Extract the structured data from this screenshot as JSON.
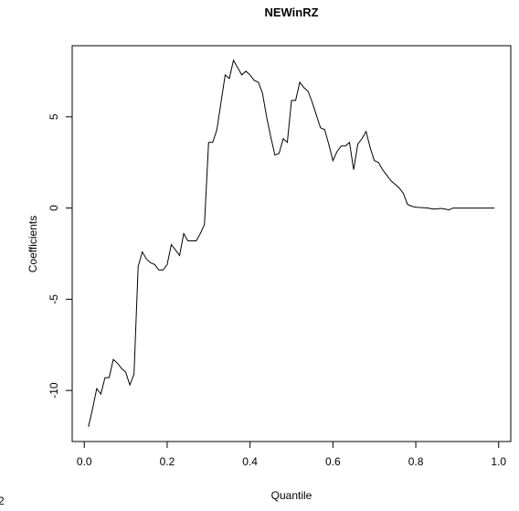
{
  "chart_data": {
    "type": "line",
    "title": "NEWinRZ",
    "x_label": "Quantile",
    "y_label": "Coefficients",
    "x": [
      0.01,
      0.02,
      0.03,
      0.04,
      0.05,
      0.06,
      0.07,
      0.08,
      0.09,
      0.1,
      0.11,
      0.12,
      0.13,
      0.14,
      0.15,
      0.16,
      0.17,
      0.18,
      0.19,
      0.2,
      0.21,
      0.22,
      0.23,
      0.24,
      0.25,
      0.26,
      0.27,
      0.28,
      0.29,
      0.3,
      0.31,
      0.32,
      0.33,
      0.34,
      0.35,
      0.36,
      0.37,
      0.38,
      0.39,
      0.4,
      0.41,
      0.42,
      0.43,
      0.44,
      0.45,
      0.46,
      0.47,
      0.48,
      0.49,
      0.5,
      0.51,
      0.52,
      0.53,
      0.54,
      0.55,
      0.56,
      0.57,
      0.58,
      0.59,
      0.6,
      0.61,
      0.62,
      0.63,
      0.64,
      0.65,
      0.66,
      0.67,
      0.68,
      0.69,
      0.7,
      0.71,
      0.72,
      0.73,
      0.74,
      0.75,
      0.76,
      0.77,
      0.78,
      0.79,
      0.8,
      0.81,
      0.82,
      0.83,
      0.84,
      0.85,
      0.86,
      0.87,
      0.88,
      0.89,
      0.9,
      0.91,
      0.92,
      0.93,
      0.94,
      0.95,
      0.96,
      0.97,
      0.98,
      0.99
    ],
    "values": [
      -12.0,
      -11.0,
      -9.9,
      -10.2,
      -9.3,
      -9.3,
      -8.3,
      -8.5,
      -8.8,
      -9.0,
      -9.7,
      -9.1,
      -3.2,
      -2.4,
      -2.8,
      -3.0,
      -3.1,
      -3.4,
      -3.4,
      -3.1,
      -2.0,
      -2.3,
      -2.6,
      -1.4,
      -1.8,
      -1.8,
      -1.8,
      -1.4,
      -0.9,
      3.6,
      3.6,
      4.3,
      5.8,
      7.3,
      7.1,
      8.1,
      7.7,
      7.3,
      7.5,
      7.3,
      7.0,
      6.9,
      6.3,
      5.0,
      3.9,
      2.9,
      3.0,
      3.8,
      3.6,
      5.9,
      5.9,
      6.9,
      6.6,
      6.4,
      5.8,
      5.1,
      4.4,
      4.3,
      3.5,
      2.6,
      3.1,
      3.4,
      3.4,
      3.6,
      2.1,
      3.5,
      3.8,
      4.2,
      3.3,
      2.6,
      2.5,
      2.1,
      1.8,
      1.5,
      1.3,
      1.1,
      0.8,
      0.2,
      0.1,
      0.05,
      0.03,
      0.02,
      0.0,
      -0.05,
      -0.05,
      -0.02,
      -0.05,
      -0.1,
      0,
      0,
      0,
      0,
      0,
      0,
      0,
      0,
      0,
      0,
      0
    ],
    "color": "#000000",
    "xlim": [
      -0.0292,
      1.0292
    ],
    "ylim": [
      -12.8,
      8.9
    ],
    "xticks": [
      {
        "value": 0,
        "label": "0.0"
      },
      0.2,
      0.4,
      0.6,
      0.8,
      {
        "value": 1,
        "label": "1.0"
      }
    ],
    "yticks": [
      -10,
      -5,
      0,
      5
    ],
    "corner_text": "2"
  }
}
